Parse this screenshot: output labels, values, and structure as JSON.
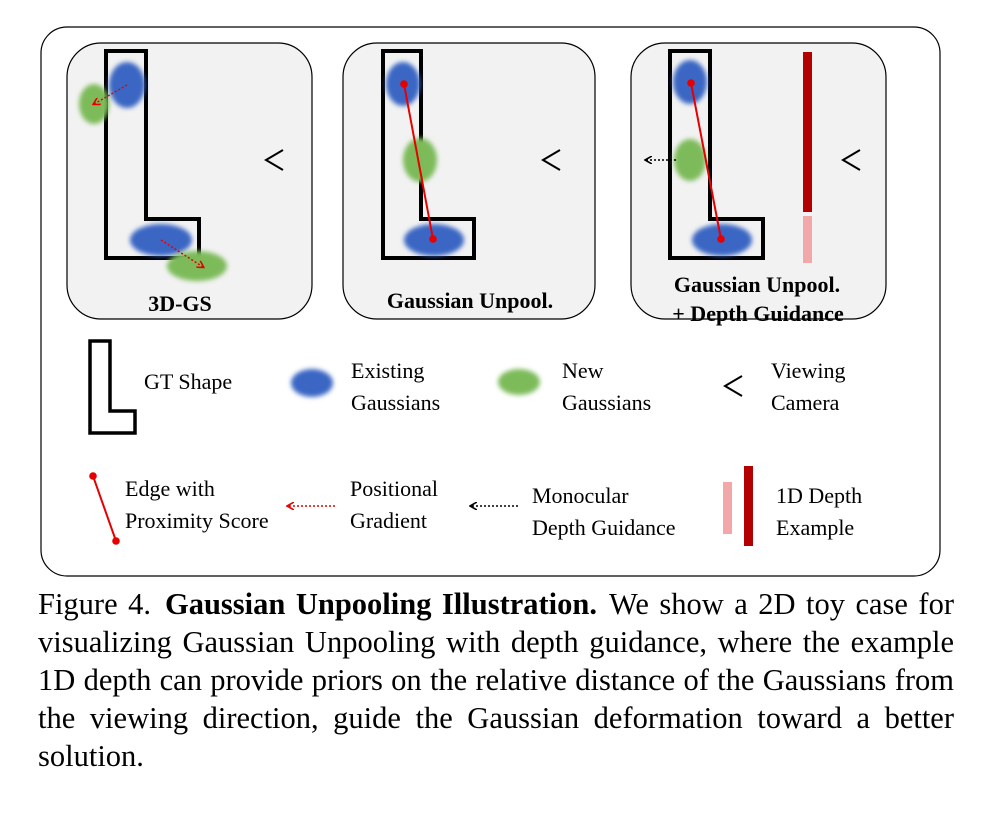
{
  "panels": [
    {
      "title": "3D-GS"
    },
    {
      "title": "Gaussian Unpool."
    },
    {
      "title_line1": "Gaussian Unpool.",
      "title_line2": "+ Depth Guidance"
    }
  ],
  "legend": {
    "gt_shape": "GT Shape",
    "existing_line1": "Existing",
    "existing_line2": "Gaussians",
    "new_line1": "New",
    "new_line2": "Gaussians",
    "camera_line1": "Viewing",
    "camera_line2": "Camera",
    "edge_line1": "Edge with",
    "edge_line2": "Proximity Score",
    "gradient_line1": "Positional",
    "gradient_line2": "Gradient",
    "mono_line1": "Monocular",
    "mono_line2": "Depth Guidance",
    "depth_line1": "1D Depth",
    "depth_line2": "Example"
  },
  "colors": {
    "existing_gaussian": "#3a66c4",
    "new_gaussian": "#7dbb5a",
    "edge": "#e60000",
    "depth_dark": "#b30000",
    "depth_light": "#f2a8a8",
    "panel_bg": "#f2f2f2"
  },
  "icons": [
    "l-shape-icon",
    "camera-icon",
    "gaussian-blob-icon",
    "arrow-icon"
  ],
  "caption": {
    "label": "Figure 4.",
    "title": "Gaussian Unpooling Illustration.",
    "text": "We show a 2D toy case for visualizing Gaussian Unpooling with depth guidance, where the example 1D depth can provide priors on the relative distance of the Gaussians from the viewing direction, guide the Gaussian deformation toward a better solution."
  }
}
